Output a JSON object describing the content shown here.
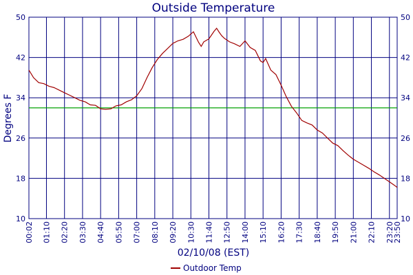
{
  "chart_data": {
    "type": "line",
    "title": "Outside Temperature",
    "xlabel": "02/10/08 (EST)",
    "ylabel": "Degrees F",
    "ylim": [
      10,
      50
    ],
    "yticks": [
      "10",
      "18",
      "26",
      "34",
      "42",
      "50"
    ],
    "xticks": [
      "00:02",
      "01:10",
      "02:20",
      "03:30",
      "04:40",
      "05:50",
      "07:00",
      "08:10",
      "09:20",
      "10:30",
      "11:40",
      "12:50",
      "14:00",
      "15:10",
      "16:20",
      "17:30",
      "18:40",
      "19:50",
      "21:00",
      "22:10",
      "23:20",
      "23:50"
    ],
    "grid": true,
    "reference_line": {
      "value": 32,
      "color": "#00a000"
    },
    "legend_position": "bottom-center",
    "colors": {
      "series": "#a00000",
      "axes": "#00007f",
      "grid": "#00007f",
      "reference": "#00a000"
    },
    "series": [
      {
        "name": "Outdoor Temp",
        "x": [
          "00:02",
          "00:20",
          "00:40",
          "01:00",
          "01:20",
          "01:40",
          "02:00",
          "02:20",
          "02:40",
          "03:00",
          "03:20",
          "03:40",
          "04:00",
          "04:20",
          "04:40",
          "05:00",
          "05:20",
          "05:40",
          "06:00",
          "06:20",
          "06:40",
          "07:00",
          "07:20",
          "07:40",
          "08:00",
          "08:20",
          "08:40",
          "09:00",
          "09:20",
          "09:40",
          "10:00",
          "10:20",
          "10:40",
          "11:00",
          "11:10",
          "11:20",
          "11:40",
          "12:00",
          "12:10",
          "12:20",
          "12:30",
          "12:40",
          "13:00",
          "13:20",
          "13:40",
          "14:00",
          "14:20",
          "14:40",
          "15:00",
          "15:10",
          "15:20",
          "15:40",
          "16:00",
          "16:20",
          "16:40",
          "17:00",
          "17:20",
          "17:40",
          "18:00",
          "18:20",
          "18:40",
          "19:00",
          "19:20",
          "19:40",
          "20:00",
          "20:20",
          "20:40",
          "21:00",
          "21:20",
          "21:40",
          "22:00",
          "22:20",
          "22:40",
          "23:00",
          "23:20",
          "23:40",
          "23:50"
        ],
        "values": [
          39.5,
          38,
          37,
          36.8,
          36.3,
          36,
          35.5,
          35,
          34.5,
          34,
          33.5,
          33.2,
          32.6,
          32.5,
          31.8,
          31.7,
          31.8,
          32.4,
          32.6,
          33.2,
          33.6,
          34.4,
          35.8,
          38,
          40,
          41.6,
          42.8,
          43.8,
          44.8,
          45.3,
          45.6,
          46.2,
          47.1,
          45,
          44.2,
          45.1,
          45.7,
          47.2,
          47.8,
          47,
          46.3,
          45.8,
          45.1,
          44.7,
          44.2,
          45.3,
          44,
          43.4,
          41.3,
          41,
          41.8,
          39.5,
          38.6,
          36.5,
          34.2,
          32.3,
          31,
          29.5,
          29,
          28.6,
          27.6,
          27,
          26,
          25,
          24.5,
          23.5,
          22.6,
          21.8,
          21.2,
          20.6,
          20,
          19.3,
          18.7,
          18,
          17.3,
          16.6,
          16.2
        ]
      }
    ]
  }
}
